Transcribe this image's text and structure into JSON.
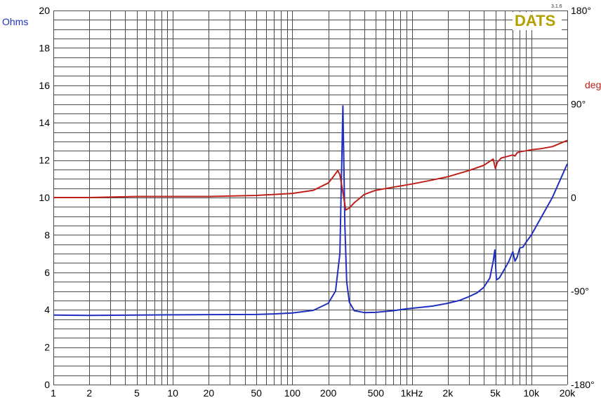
{
  "brand": {
    "logo": "DATS",
    "version": "3.1.6",
    "logo_color": "#b3a000"
  },
  "colors": {
    "impedance": "#1f2fbf",
    "phase": "#c0201a",
    "grid": "#4a4a4a"
  },
  "chart_data": {
    "type": "line",
    "xscale": "log",
    "xlim": [
      1,
      20000
    ],
    "ylim": [
      0,
      20
    ],
    "ylabel": "Ohms",
    "y2label": "deg",
    "y2lim": [
      -180,
      180
    ],
    "grid": true,
    "x_ticks": [
      {
        "v": 1,
        "label": "1"
      },
      {
        "v": 2,
        "label": "2"
      },
      {
        "v": 5,
        "label": "5"
      },
      {
        "v": 10,
        "label": "10"
      },
      {
        "v": 20,
        "label": "20"
      },
      {
        "v": 50,
        "label": "50"
      },
      {
        "v": 100,
        "label": "100"
      },
      {
        "v": 200,
        "label": "200"
      },
      {
        "v": 500,
        "label": "500"
      },
      {
        "v": 1000,
        "label": "1kHz"
      },
      {
        "v": 2000,
        "label": "2k"
      },
      {
        "v": 5000,
        "label": "5k"
      },
      {
        "v": 10000,
        "label": "10k"
      },
      {
        "v": 20000,
        "label": "20k"
      }
    ],
    "y_ticks": [
      {
        "v": 0,
        "label": "0"
      },
      {
        "v": 2,
        "label": "2"
      },
      {
        "v": 4,
        "label": "4"
      },
      {
        "v": 6,
        "label": "6"
      },
      {
        "v": 8,
        "label": "8"
      },
      {
        "v": 10,
        "label": "10"
      },
      {
        "v": 12,
        "label": "12"
      },
      {
        "v": 14,
        "label": "14"
      },
      {
        "v": 16,
        "label": "16"
      },
      {
        "v": 18,
        "label": "18"
      },
      {
        "v": 20,
        "label": "20"
      }
    ],
    "y2_ticks": [
      {
        "v": 180,
        "label": "180°"
      },
      {
        "v": 90,
        "label": "90°"
      },
      {
        "v": 0,
        "label": "0"
      },
      {
        "v": -90,
        "label": "-90°"
      },
      {
        "v": -180,
        "label": "-180°"
      }
    ],
    "series": [
      {
        "key": "impedance",
        "axis": "left",
        "x": [
          1,
          2,
          5,
          10,
          20,
          50,
          70,
          100,
          150,
          200,
          230,
          250,
          265,
          275,
          285,
          300,
          330,
          400,
          500,
          700,
          900,
          1000,
          1500,
          2000,
          2500,
          3000,
          3500,
          4000,
          4500,
          4800,
          4950,
          5100,
          5400,
          6000,
          6500,
          7000,
          7300,
          7600,
          8000,
          8500,
          9000,
          10000,
          12000,
          15000,
          20000
        ],
        "y": [
          3.72,
          3.7,
          3.72,
          3.73,
          3.74,
          3.75,
          3.78,
          3.83,
          3.97,
          4.35,
          5.0,
          7.0,
          14.9,
          8.5,
          5.5,
          4.4,
          3.95,
          3.85,
          3.86,
          3.95,
          4.05,
          4.08,
          4.2,
          4.35,
          4.5,
          4.7,
          4.9,
          5.2,
          5.7,
          6.6,
          7.2,
          5.6,
          5.7,
          6.2,
          6.6,
          7.1,
          6.6,
          6.8,
          7.3,
          7.35,
          7.6,
          8.0,
          8.9,
          10.0,
          11.8
        ]
      },
      {
        "key": "phase",
        "axis": "right",
        "x": [
          1,
          2,
          5,
          10,
          20,
          50,
          70,
          100,
          150,
          200,
          220,
          240,
          250,
          265,
          280,
          300,
          330,
          400,
          500,
          700,
          1000,
          1500,
          2000,
          3000,
          4000,
          4800,
          5000,
          5200,
          5600,
          6000,
          6500,
          7000,
          7300,
          7600,
          8000,
          9000,
          10000,
          12000,
          15000,
          20000
        ],
        "y": [
          0,
          0,
          1,
          1,
          1,
          2,
          3,
          4,
          7,
          14,
          20,
          26,
          22,
          5,
          -12,
          -10,
          -5,
          3,
          7,
          10,
          13,
          17,
          20,
          26,
          31,
          37,
          28,
          34,
          38,
          39,
          40,
          41,
          40,
          43,
          44,
          45,
          46,
          47,
          49,
          55
        ]
      }
    ]
  }
}
